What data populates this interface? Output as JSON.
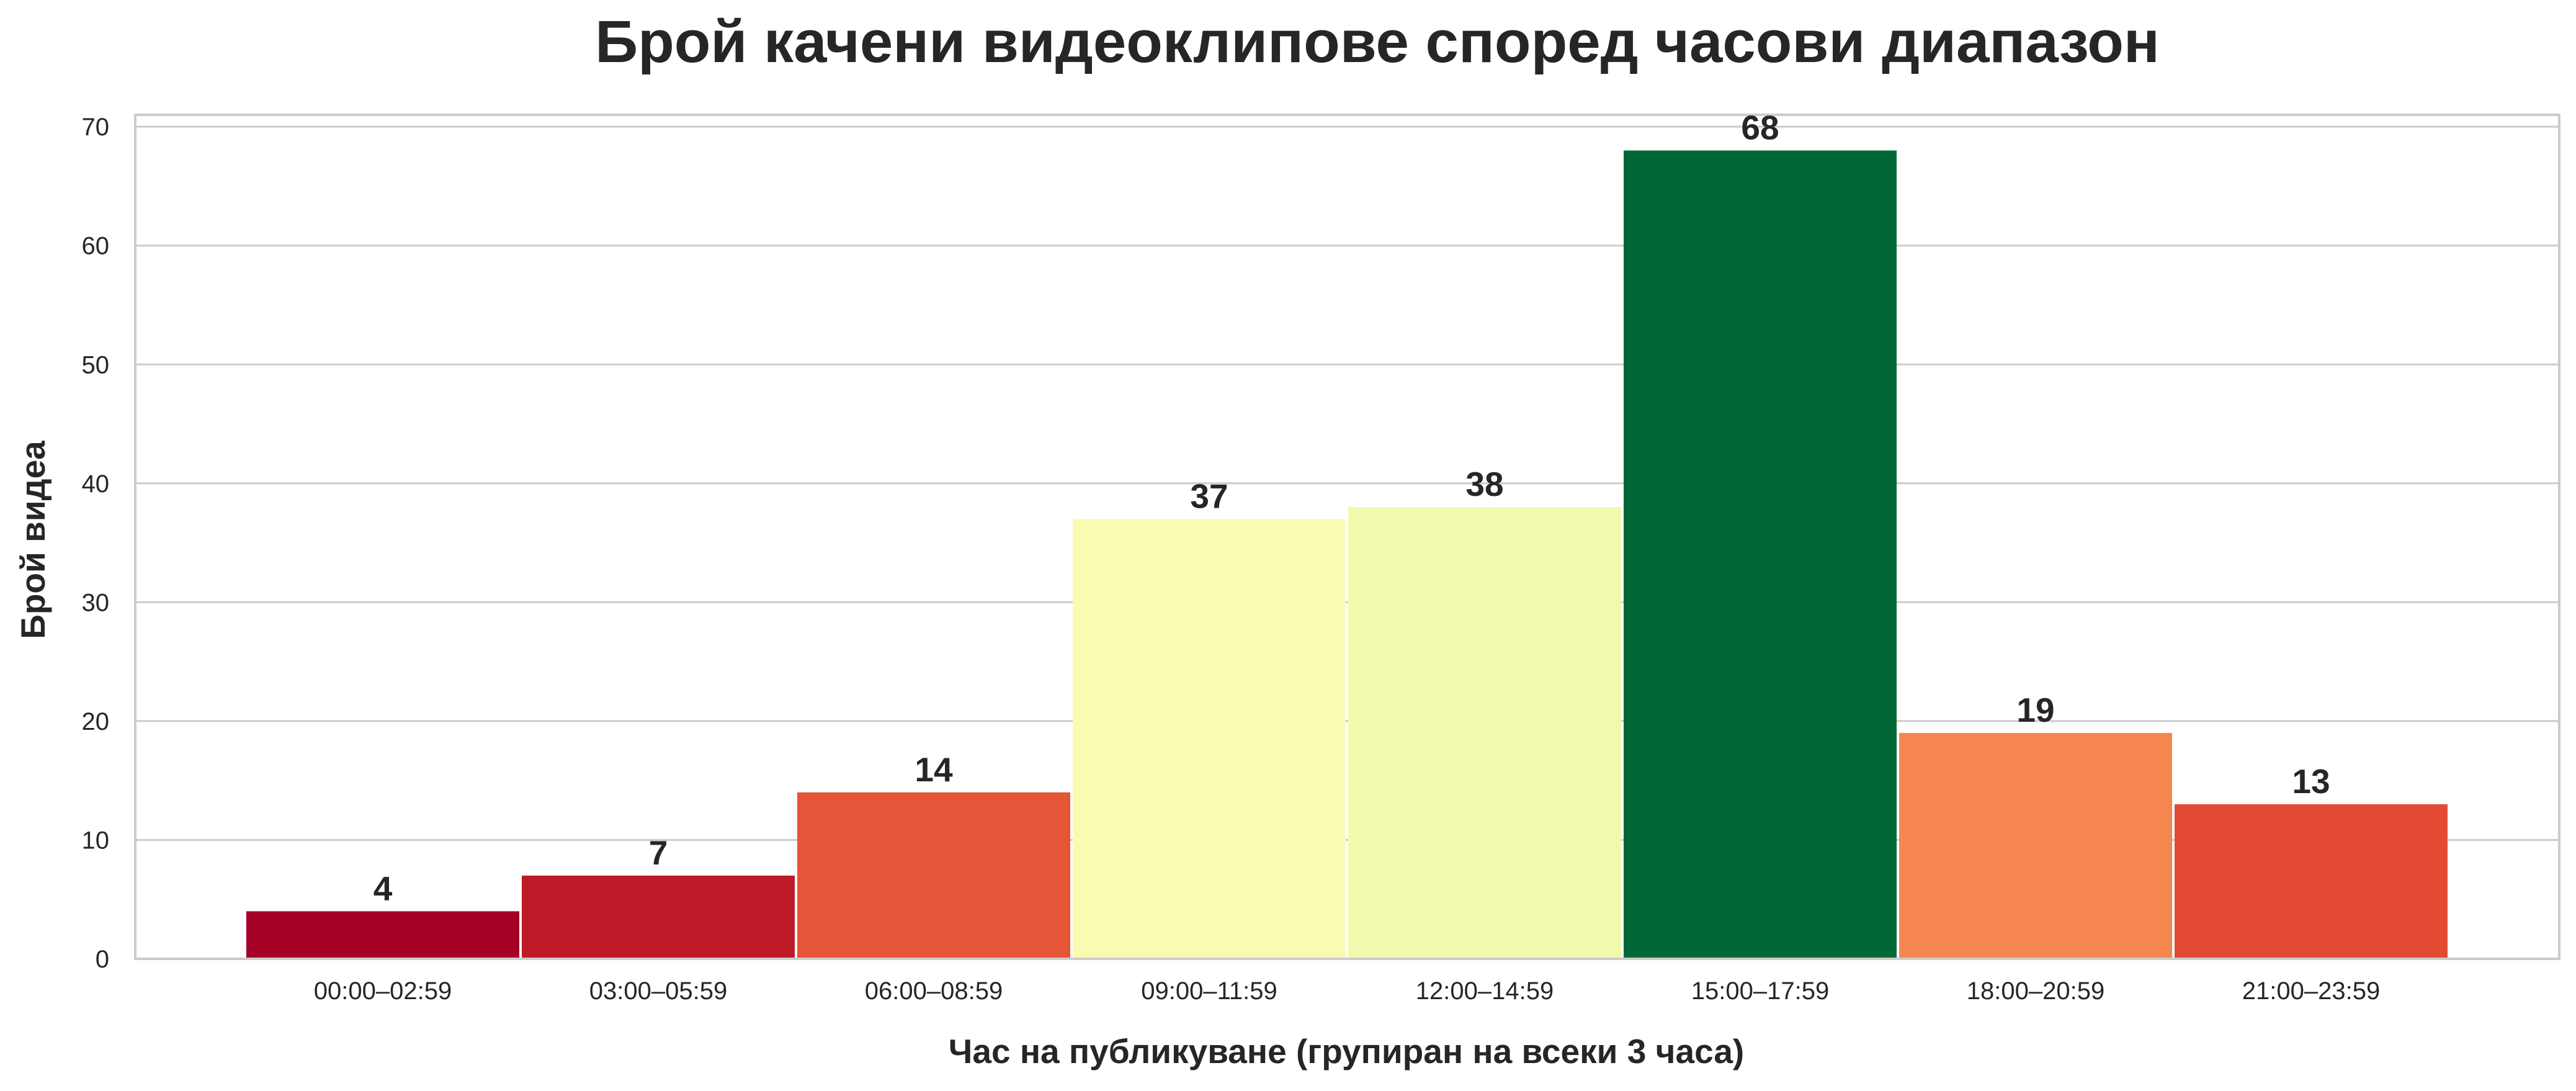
{
  "chart_data": {
    "type": "bar",
    "title": "Брой качени видеоклипове според часови диапазон",
    "xlabel": "Час на публикуване (групиран на всеки 3 часа)",
    "ylabel": "Брой видеа",
    "categories": [
      "00:00–02:59",
      "03:00–05:59",
      "06:00–08:59",
      "09:00–11:59",
      "12:00–14:59",
      "15:00–17:59",
      "18:00–20:59",
      "21:00–23:59"
    ],
    "values": [
      4,
      7,
      14,
      37,
      38,
      68,
      19,
      13
    ],
    "bar_colors": [
      "#a50026",
      "#be1a28",
      "#e55538",
      "#f9fbb2",
      "#f1f9ac",
      "#006837",
      "#f6864f",
      "#e24a33"
    ],
    "data_labels": [
      "4",
      "7",
      "14",
      "37",
      "38",
      "68",
      "19",
      "13"
    ],
    "ylim": [
      0,
      71
    ],
    "yticks": [
      0,
      10,
      20,
      30,
      40,
      50,
      60,
      70
    ],
    "grid": "horizontal",
    "colors": {
      "grid": "#cccccc",
      "frame": "#cccccc",
      "text": "#262626",
      "background": "#ffffff"
    }
  }
}
